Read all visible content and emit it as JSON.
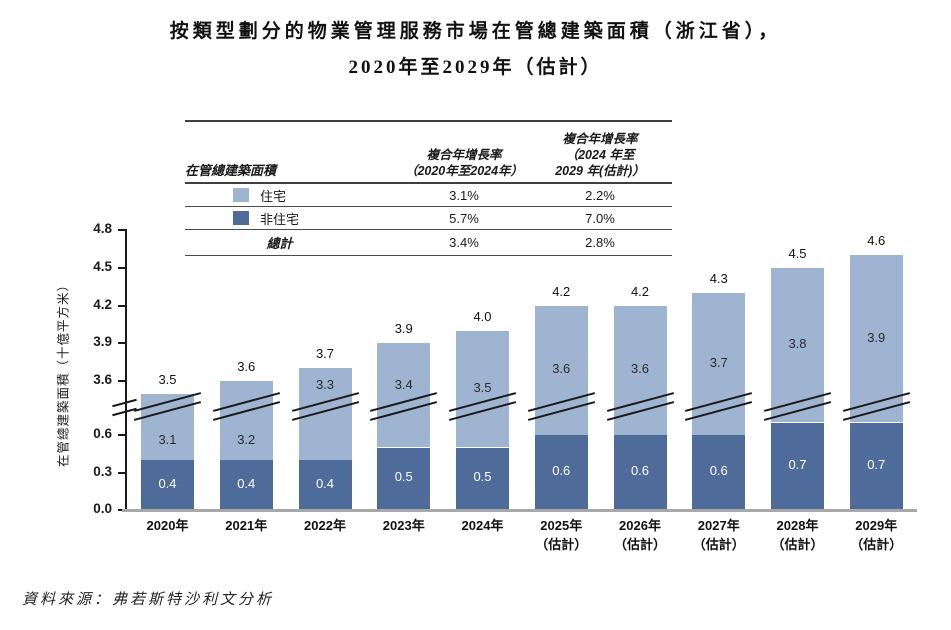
{
  "title": {
    "line1": "按類型劃分的物業管理服務市場在管總建築面積（浙江省），",
    "line2": "2020年至2029年（估計）"
  },
  "legend_table": {
    "col1_header": "在管總建築面積",
    "col2_header_line1": "複合年增長率",
    "col2_header_line2": "（2020年至2024年）",
    "col3_header_line1": "複合年增長率",
    "col3_header_line2": "（2024 年至",
    "col3_header_line3": "2029 年(估計)）",
    "rows": [
      {
        "label": "住宅",
        "swatch_color": "#9fb4d1",
        "cagr_2020_2024": "3.1%",
        "cagr_2024_2029": "2.2%"
      },
      {
        "label": "非住宅",
        "swatch_color": "#4e6b9a",
        "cagr_2020_2024": "5.7%",
        "cagr_2024_2029": "7.0%"
      },
      {
        "label": "總計",
        "cagr_2020_2024": "3.4%",
        "cagr_2024_2029": "2.8%"
      }
    ]
  },
  "chart_data": {
    "type": "bar",
    "stacked": true,
    "title": "按類型劃分的物業管理服務市場在管總建築面積（浙江省），2020年至2029年（估計）",
    "ylabel": "在管總建築面積（十億平方米）",
    "xlabel": "",
    "axis_break": true,
    "ylim_lower_segment": [
      0.0,
      0.6
    ],
    "ylim_upper_segment": [
      3.6,
      4.8
    ],
    "yticks_lower": [
      0.0,
      0.3,
      0.6
    ],
    "yticks_upper": [
      3.6,
      3.9,
      4.2,
      4.5,
      4.8
    ],
    "categories": [
      {
        "line1": "2020年",
        "line2": ""
      },
      {
        "line1": "2021年",
        "line2": ""
      },
      {
        "line1": "2022年",
        "line2": ""
      },
      {
        "line1": "2023年",
        "line2": ""
      },
      {
        "line1": "2024年",
        "line2": ""
      },
      {
        "line1": "2025年",
        "line2": "（估計）"
      },
      {
        "line1": "2026年",
        "line2": "（估計）"
      },
      {
        "line1": "2027年",
        "line2": "（估計）"
      },
      {
        "line1": "2028年",
        "line2": "（估計）"
      },
      {
        "line1": "2029年",
        "line2": "（估計）"
      }
    ],
    "series": [
      {
        "name": "非住宅",
        "color": "#4e6b9a",
        "values": [
          0.4,
          0.4,
          0.4,
          0.5,
          0.5,
          0.6,
          0.6,
          0.6,
          0.7,
          0.7
        ]
      },
      {
        "name": "住宅",
        "color": "#9fb4d1",
        "values": [
          3.1,
          3.2,
          3.3,
          3.4,
          3.5,
          3.6,
          3.6,
          3.7,
          3.8,
          3.9
        ]
      }
    ],
    "totals": [
      3.5,
      3.6,
      3.7,
      3.9,
      4.0,
      4.2,
      4.2,
      4.3,
      4.5,
      4.6
    ],
    "legend_position": "table-above"
  },
  "source": "資料來源：弗若斯特沙利文分析"
}
